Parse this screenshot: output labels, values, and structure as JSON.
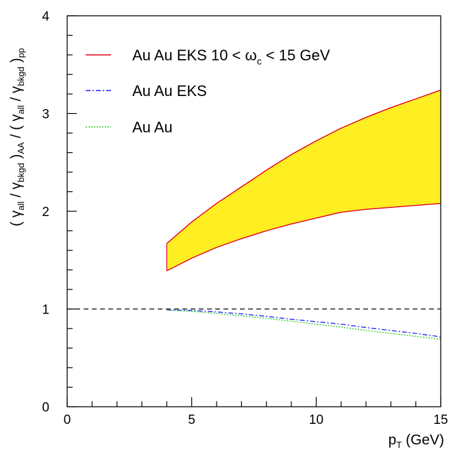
{
  "chart_data": {
    "type": "line",
    "xlabel": "p",
    "xlabel_sub": "T",
    "xlabel_unit": " (GeV)",
    "ylabel": {
      "open1": "( ",
      "gamma1": "γ",
      "all_sub1": "all",
      "slash1": " / ",
      "gamma2": "γ",
      "bkgd_sub1": "bkgd",
      "close1": " )",
      "aa_sub": "AA",
      "mid": " / ( ",
      "gamma3": "γ",
      "all_sub2": "all",
      "slash2": " / ",
      "gamma4": "γ",
      "bkgd_sub2": "bkgd",
      "close2": " )",
      "pp_sub": "pp"
    },
    "xlim": [
      0,
      15
    ],
    "ylim": [
      0,
      4
    ],
    "x_ticks": [
      "0",
      "5",
      "10",
      "15"
    ],
    "y_ticks": [
      "0",
      "1",
      "2",
      "3",
      "4"
    ],
    "reference_line": {
      "y": 1,
      "style": "dashed",
      "color": "#000000"
    },
    "band": {
      "fill": "#ffee22",
      "edge_color": "#e0001a",
      "x": [
        4,
        5,
        6,
        7,
        8,
        9,
        10,
        11,
        12,
        13,
        14,
        15
      ],
      "upper": [
        1.67,
        1.89,
        2.08,
        2.25,
        2.42,
        2.58,
        2.72,
        2.85,
        2.96,
        3.06,
        3.15,
        3.24
      ],
      "lower": [
        1.39,
        1.52,
        1.63,
        1.72,
        1.8,
        1.87,
        1.93,
        1.99,
        2.02,
        2.04,
        2.06,
        2.08
      ]
    },
    "series": [
      {
        "name": "Au Au EKS",
        "color": "#1a1aff",
        "style": "dash-dot",
        "x": [
          4,
          5,
          6,
          7,
          8,
          9,
          10,
          11,
          12,
          13,
          14,
          15
        ],
        "values": [
          0.99,
          0.985,
          0.97,
          0.95,
          0.925,
          0.895,
          0.87,
          0.845,
          0.81,
          0.78,
          0.75,
          0.715
        ]
      },
      {
        "name": "Au Au",
        "color": "#22cc22",
        "style": "dotted",
        "x": [
          4,
          5,
          6,
          7,
          8,
          9,
          10,
          11,
          12,
          13,
          14,
          15
        ],
        "values": [
          0.99,
          0.975,
          0.955,
          0.93,
          0.905,
          0.875,
          0.845,
          0.815,
          0.78,
          0.75,
          0.72,
          0.69
        ]
      }
    ],
    "legend": {
      "position": "top-left",
      "entries": [
        {
          "key": "band",
          "color": "#e0001a",
          "style": "solid",
          "text_main": "Au Au EKS 10 < ",
          "text_omega": "ω",
          "text_sub": "c",
          "text_end": " < 15 GeV"
        },
        {
          "key": "eks",
          "color": "#1a1aff",
          "style": "dash-dot",
          "text_main": "Au Au EKS"
        },
        {
          "key": "auau",
          "color": "#22cc22",
          "style": "dotted",
          "text_main": "Au Au"
        }
      ]
    }
  }
}
